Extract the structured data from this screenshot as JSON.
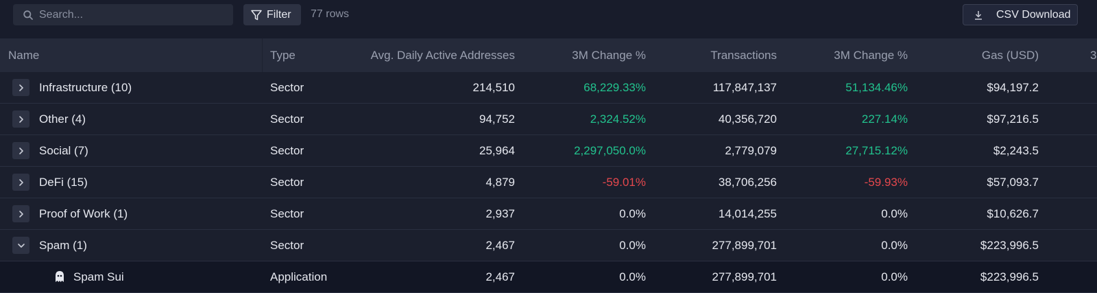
{
  "toolbar": {
    "search_placeholder": "Search...",
    "filter_label": "Filter",
    "row_count": "77 rows",
    "csv_label": "CSV Download"
  },
  "table": {
    "columns": [
      "Name",
      "Type",
      "Avg. Daily Active Addresses",
      "3M Change %",
      "Transactions",
      "3M Change %",
      "Gas (USD)",
      "3"
    ],
    "rows": [
      {
        "name": "Infrastructure (10)",
        "type": "Sector",
        "daa": "214,510",
        "daa_change": "68,229.33%",
        "daa_change_tone": "pos",
        "tx": "117,847,137",
        "tx_change": "51,134.46%",
        "tx_change_tone": "pos",
        "gas": "$94,197.2",
        "expanded": false
      },
      {
        "name": "Other (4)",
        "type": "Sector",
        "daa": "94,752",
        "daa_change": "2,324.52%",
        "daa_change_tone": "pos",
        "tx": "40,356,720",
        "tx_change": "227.14%",
        "tx_change_tone": "pos",
        "gas": "$97,216.5",
        "expanded": false
      },
      {
        "name": "Social (7)",
        "type": "Sector",
        "daa": "25,964",
        "daa_change": "2,297,050.0%",
        "daa_change_tone": "pos",
        "tx": "2,779,079",
        "tx_change": "27,715.12%",
        "tx_change_tone": "pos",
        "gas": "$2,243.5",
        "expanded": false
      },
      {
        "name": "DeFi (15)",
        "type": "Sector",
        "daa": "4,879",
        "daa_change": "-59.01%",
        "daa_change_tone": "neg",
        "tx": "38,706,256",
        "tx_change": "-59.93%",
        "tx_change_tone": "neg",
        "gas": "$57,093.7",
        "expanded": false
      },
      {
        "name": "Proof of Work (1)",
        "type": "Sector",
        "daa": "2,937",
        "daa_change": "0.0%",
        "daa_change_tone": "neutral",
        "tx": "14,014,255",
        "tx_change": "0.0%",
        "tx_change_tone": "neutral",
        "gas": "$10,626.7",
        "expanded": false
      },
      {
        "name": "Spam (1)",
        "type": "Sector",
        "daa": "2,467",
        "daa_change": "0.0%",
        "daa_change_tone": "neutral",
        "tx": "277,899,701",
        "tx_change": "0.0%",
        "tx_change_tone": "neutral",
        "gas": "$223,996.5",
        "expanded": true
      },
      {
        "name": "Spam Sui",
        "type": "Application",
        "daa": "2,467",
        "daa_change": "0.0%",
        "daa_change_tone": "neutral",
        "tx": "277,899,701",
        "tx_change": "0.0%",
        "tx_change_tone": "neutral",
        "gas": "$223,996.5",
        "child": true,
        "icon": "ghost-icon"
      }
    ]
  },
  "colors": {
    "background": "#181c2b",
    "header_bg": "#252a3a",
    "positive": "#22c38e",
    "negative": "#e5484d"
  }
}
